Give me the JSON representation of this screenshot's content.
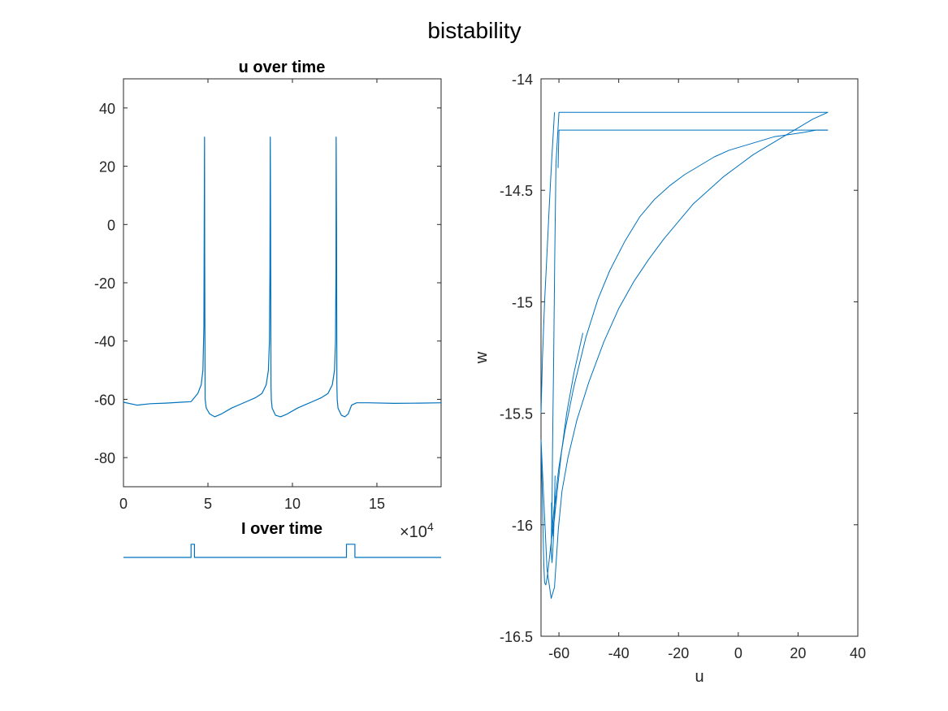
{
  "figure": {
    "suptitle": "bistability",
    "line_color": "#0072BD"
  },
  "chart_data": [
    {
      "id": "u-over-time",
      "type": "line",
      "title": "u over time",
      "xlabel": "",
      "ylabel": "",
      "xlim": [
        0,
        188000
      ],
      "ylim": [
        -90,
        50
      ],
      "x_ticks": [
        0,
        50000,
        100000,
        150000
      ],
      "x_tick_labels": [
        "0",
        "5",
        "10",
        "15"
      ],
      "x_exponent_label": "×10",
      "x_exponent_power": "4",
      "y_ticks": [
        40,
        20,
        0,
        -20,
        -40,
        -60,
        -80
      ],
      "y_tick_labels": [
        "40",
        "20",
        "0",
        "-20",
        "-40",
        "-60",
        "-80"
      ],
      "grid": false,
      "series": [
        {
          "values_x": [
            0,
            8000,
            16000,
            25000,
            34000,
            40000,
            44000,
            46000,
            47000,
            47600,
            47800,
            48000,
            48100,
            48300,
            49000,
            51000,
            54000,
            58000,
            64000,
            72000,
            78000,
            82000,
            84500,
            85800,
            86400,
            86700,
            86900,
            87100,
            87300,
            87500,
            88000,
            90000,
            93000,
            97000,
            103000,
            111000,
            117000,
            121000,
            123600,
            124900,
            125500,
            125800,
            125900,
            126100,
            126300,
            126500,
            127000,
            129000,
            131000,
            133000,
            135000,
            138000,
            145000,
            160000,
            175000,
            188000
          ],
          "values_y": [
            -61,
            -62,
            -61.5,
            -61.3,
            -61,
            -60.8,
            -58,
            -55,
            -50,
            -35,
            0,
            30,
            -10,
            -60,
            -63,
            -65,
            -66,
            -65,
            -63,
            -61,
            -59.5,
            -58,
            -55,
            -50,
            -40,
            -15,
            30,
            0,
            -55,
            -60,
            -63,
            -65.5,
            -66,
            -65,
            -63,
            -61,
            -59.5,
            -58,
            -55,
            -50,
            -40,
            -15,
            30,
            0,
            -55,
            -60,
            -63,
            -65.5,
            -66,
            -65,
            -62,
            -61.2,
            -61.2,
            -61.4,
            -61.3,
            -61.2
          ]
        }
      ]
    },
    {
      "id": "i-over-time",
      "type": "line",
      "title": "I over time",
      "xlabel": "",
      "ylabel": "",
      "xlim": [
        0,
        188000
      ],
      "ylim": [
        0,
        1.6
      ],
      "axis_visible": false,
      "series": [
        {
          "values_x": [
            0,
            40000,
            40000,
            42000,
            42000,
            132000,
            132000,
            137000,
            137000,
            188000
          ],
          "values_y": [
            0,
            0,
            1,
            1,
            0,
            0,
            1,
            1,
            0,
            0
          ]
        }
      ]
    },
    {
      "id": "phase-plane",
      "type": "line",
      "title": "",
      "xlabel": "u",
      "ylabel": "w",
      "xlim": [
        -66,
        40
      ],
      "ylim": [
        -16.5,
        -14
      ],
      "x_ticks": [
        -60,
        -40,
        -20,
        0,
        20,
        40
      ],
      "x_tick_labels": [
        "-60",
        "-40",
        "-20",
        "0",
        "20",
        "40"
      ],
      "y_ticks": [
        -14,
        -14.5,
        -15,
        -15.5,
        -16,
        -16.5
      ],
      "y_tick_labels": [
        "-14",
        "-14.5",
        "-15",
        "-15.5",
        "-16",
        "-16.5"
      ],
      "grid": false,
      "series": [
        {
          "values_x": [
            -61,
            -61.2,
            -61.6,
            -62,
            -62.4,
            -62.8,
            -63.2,
            -63.6,
            -64,
            -64.4,
            -64.8,
            -65,
            -65.2,
            -65.4,
            -65.6,
            -65.8,
            -66
          ],
          "values_y": [
            -15.87,
            -15.92,
            -15.97,
            -16.02,
            -16.06,
            -16.1,
            -16.15,
            -16.2,
            -16.24,
            -16.27,
            -16.26,
            -16.2,
            -16.1,
            -15.98,
            -15.86,
            -15.74,
            -15.62
          ]
        },
        {
          "values_x": [
            -66,
            -64,
            -62.6,
            -61.5,
            -61,
            -60.2,
            -59,
            -57,
            -54,
            -50,
            -45,
            -40,
            -35,
            -30,
            -25,
            -20,
            -15,
            -10,
            -5,
            0,
            5,
            10,
            15,
            20,
            25,
            30
          ],
          "values_y": [
            -15.62,
            -16.2,
            -16.33,
            -16.28,
            -16.18,
            -16.02,
            -15.85,
            -15.7,
            -15.53,
            -15.36,
            -15.18,
            -15.03,
            -14.91,
            -14.81,
            -14.72,
            -14.64,
            -14.56,
            -14.5,
            -14.44,
            -14.39,
            -14.34,
            -14.3,
            -14.26,
            -14.22,
            -14.18,
            -14.15
          ]
        },
        {
          "values_x": [
            30,
            -60,
            -61
          ],
          "values_y": [
            -14.15,
            -14.15,
            -14.38
          ]
        },
        {
          "values_x": [
            -61,
            -61.2,
            -61.4,
            -61.6,
            -61.8,
            -62,
            -62.1,
            -62.2,
            -62.25,
            -62.3,
            -62.32,
            -62.35
          ],
          "values_y": [
            -14.38,
            -14.58,
            -14.8,
            -15.04,
            -15.28,
            -15.5,
            -15.62,
            -15.73,
            -15.82,
            -15.9,
            -15.97,
            -16.03
          ]
        },
        {
          "values_x": [
            -66,
            -65.5,
            -64.8,
            -64,
            -63.2,
            -62.4,
            -61.5
          ],
          "values_y": [
            -15.5,
            -15.25,
            -15.0,
            -14.78,
            -14.56,
            -14.36,
            -14.15
          ]
        },
        {
          "values_x": [
            -62.35,
            -61.6,
            -60,
            -58,
            -55,
            -51,
            -47,
            -43,
            -38,
            -33,
            -28,
            -23,
            -18,
            -13,
            -8,
            -3,
            2,
            7,
            12,
            17,
            22,
            26,
            30
          ],
          "values_y": [
            -16.03,
            -15.92,
            -15.74,
            -15.58,
            -15.38,
            -15.16,
            -14.99,
            -14.86,
            -14.73,
            -14.62,
            -14.54,
            -14.48,
            -14.43,
            -14.39,
            -14.35,
            -14.32,
            -14.3,
            -14.28,
            -14.26,
            -14.25,
            -14.24,
            -14.23,
            -14.23
          ]
        },
        {
          "values_x": [
            30,
            -60,
            -60.3
          ],
          "values_y": [
            -14.23,
            -14.23,
            -14.4
          ]
        },
        {
          "values_x": [
            -62.3,
            -62.5,
            -62.6,
            -62.3,
            -61.8,
            -61.5,
            -61.3
          ],
          "values_y": [
            -15.92,
            -16.02,
            -16.12,
            -16.17,
            -16.05,
            -15.9,
            -15.78
          ]
        },
        {
          "values_x": [
            -62.5,
            -62.4,
            -62.2,
            -61.9,
            -61.4,
            -60.5,
            -59.2,
            -57.4,
            -55,
            -52
          ],
          "values_y": [
            -15.9,
            -16.0,
            -16.05,
            -16.02,
            -15.96,
            -15.84,
            -15.68,
            -15.5,
            -15.32,
            -15.14
          ]
        }
      ]
    }
  ]
}
